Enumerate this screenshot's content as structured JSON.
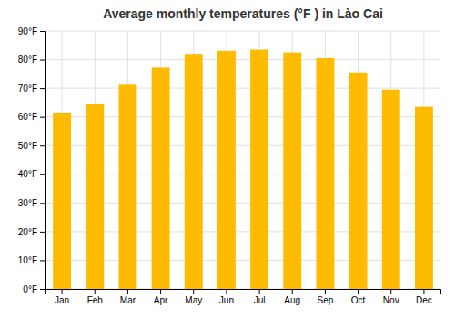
{
  "chart_data": {
    "type": "bar",
    "title": "Average monthly temperatures (°F ) in Lào Cai",
    "categories": [
      "Jan",
      "Feb",
      "Mar",
      "Apr",
      "May",
      "Jun",
      "Jul",
      "Aug",
      "Sep",
      "Oct",
      "Nov",
      "Dec"
    ],
    "values": [
      61.5,
      64.5,
      71.2,
      77.2,
      82.0,
      83.1,
      83.5,
      82.5,
      80.5,
      75.5,
      69.5,
      63.5
    ],
    "color": "#FFBB00",
    "ylim": [
      0,
      90
    ],
    "yticks": [
      {
        "value": 0,
        "label": "0°F"
      },
      {
        "value": 10,
        "label": "10°F"
      },
      {
        "value": 20,
        "label": "20°F"
      },
      {
        "value": 30,
        "label": "30°F"
      },
      {
        "value": 40,
        "label": "40°F"
      },
      {
        "value": 50,
        "label": "50°F"
      },
      {
        "value": 60,
        "label": "60°F"
      },
      {
        "value": 70,
        "label": "70°F"
      },
      {
        "value": 80,
        "label": "80°F"
      },
      {
        "value": 90,
        "label": "90°F"
      }
    ],
    "grid": true
  }
}
